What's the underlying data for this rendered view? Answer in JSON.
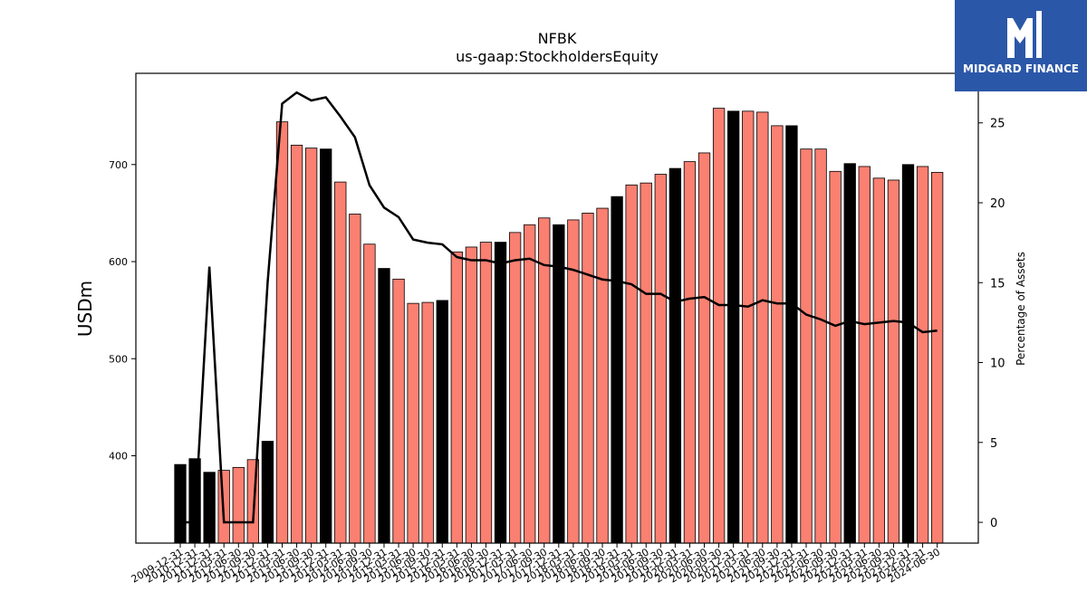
{
  "chart_data": {
    "type": "bar",
    "title": "NFBK",
    "subtitle": "us-gaap:StockholdersEquity",
    "ylabel": "USDm",
    "ylabel_right": "Percentage of Assets",
    "ylim": [
      310,
      794
    ],
    "ylim_right": [
      -1.3,
      28.1
    ],
    "yticks": [
      400,
      500,
      600,
      700
    ],
    "yticks_right": [
      0,
      5,
      10,
      15,
      20,
      25
    ],
    "colors": {
      "q4_bar": "#000000",
      "other_bar": "#fa8072",
      "line": "#000000"
    },
    "x_labels": [
      "2009-12-31",
      "2010-12-31",
      "2011-12-31",
      "2012-03-31",
      "2012-06-30",
      "2012-09-30",
      "2012-12-31",
      "2013-03-31",
      "2013-06-30",
      "2013-09-30",
      "2013-12-31",
      "2014-03-31",
      "2014-06-30",
      "2014-09-30",
      "2014-12-31",
      "2015-03-31",
      "2015-06-30",
      "2015-09-30",
      "2015-12-31",
      "2016-03-31",
      "2016-06-30",
      "2016-09-30",
      "2016-12-31",
      "2017-03-31",
      "2017-06-30",
      "2017-09-30",
      "2017-12-31",
      "2018-03-31",
      "2018-06-30",
      "2018-09-30",
      "2018-12-31",
      "2019-03-31",
      "2019-06-30",
      "2019-09-30",
      "2019-12-31",
      "2020-03-31",
      "2020-06-30",
      "2020-09-30",
      "2020-12-31",
      "2021-03-31",
      "2021-06-30",
      "2021-09-30",
      "2021-12-31",
      "2022-03-31",
      "2022-06-30",
      "2022-09-30",
      "2022-12-31",
      "2023-03-31",
      "2023-06-30",
      "2023-09-30",
      "2023-12-31",
      "2024-03-31",
      "2024-06-30"
    ],
    "equity_values": [
      391,
      397,
      383,
      385,
      388,
      396,
      415,
      744,
      720,
      717,
      716,
      682,
      649,
      618,
      593,
      582,
      557,
      558,
      560,
      610,
      615,
      620,
      620,
      630,
      638,
      645,
      638,
      643,
      650,
      655,
      667,
      679,
      681,
      690,
      696,
      703,
      712,
      758,
      755,
      755,
      754,
      740,
      740,
      716,
      716,
      693,
      701,
      698,
      686,
      684,
      700,
      698,
      692
    ],
    "q4_flags": [
      1,
      1,
      1,
      0,
      0,
      0,
      1,
      0,
      0,
      0,
      1,
      0,
      0,
      0,
      1,
      0,
      0,
      0,
      1,
      0,
      0,
      0,
      1,
      0,
      0,
      0,
      1,
      0,
      0,
      0,
      1,
      0,
      0,
      0,
      1,
      0,
      0,
      0,
      1,
      0,
      0,
      0,
      1,
      0,
      0,
      0,
      1,
      0,
      0,
      0,
      1,
      0,
      0
    ],
    "pct_assets": [
      0,
      0,
      16,
      0,
      0,
      0,
      15,
      26.2,
      26.9,
      26.4,
      26.6,
      25.4,
      24.1,
      21.1,
      19.7,
      19.1,
      17.7,
      17.5,
      17.4,
      16.6,
      16.4,
      16.4,
      16.2,
      16.4,
      16.5,
      16.1,
      16.0,
      15.8,
      15.5,
      15.2,
      15.1,
      14.9,
      14.3,
      14.3,
      13.8,
      14.0,
      14.1,
      13.6,
      13.6,
      13.5,
      13.9,
      13.7,
      13.7,
      13.0,
      12.7,
      12.3,
      12.6,
      12.4,
      12.5,
      12.6,
      12.5,
      11.9,
      12.0
    ]
  },
  "logo": {
    "text": "MIDGARD FINANCE"
  }
}
